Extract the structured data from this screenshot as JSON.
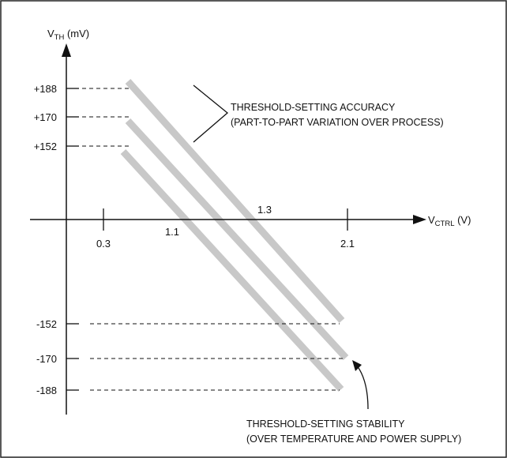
{
  "figure": {
    "y_axis": {
      "label_main": "V",
      "label_sub": "TH",
      "label_unit": " (mV)"
    },
    "x_axis": {
      "label_main": "V",
      "label_sub": "CTRL",
      "label_unit": " (V)"
    },
    "y_tick_labels": [
      "+188",
      "+170",
      "+152",
      "-152",
      "-170",
      "-188"
    ],
    "x_tick_labels": [
      "0.3",
      "1.1",
      "1.3",
      "2.1"
    ],
    "annotations": {
      "accuracy_line1": "THRESHOLD-SETTING ACCURACY",
      "accuracy_line2": "(PART-TO-PART VARIATION OVER PROCESS)",
      "stability_line1": "THRESHOLD-SETTING STABILITY",
      "stability_line2": "(OVER TEMPERATURE AND POWER SUPPLY)"
    },
    "colors": {
      "band": "#c8c8c8",
      "line": "#111111",
      "border": "#222222"
    }
  }
}
